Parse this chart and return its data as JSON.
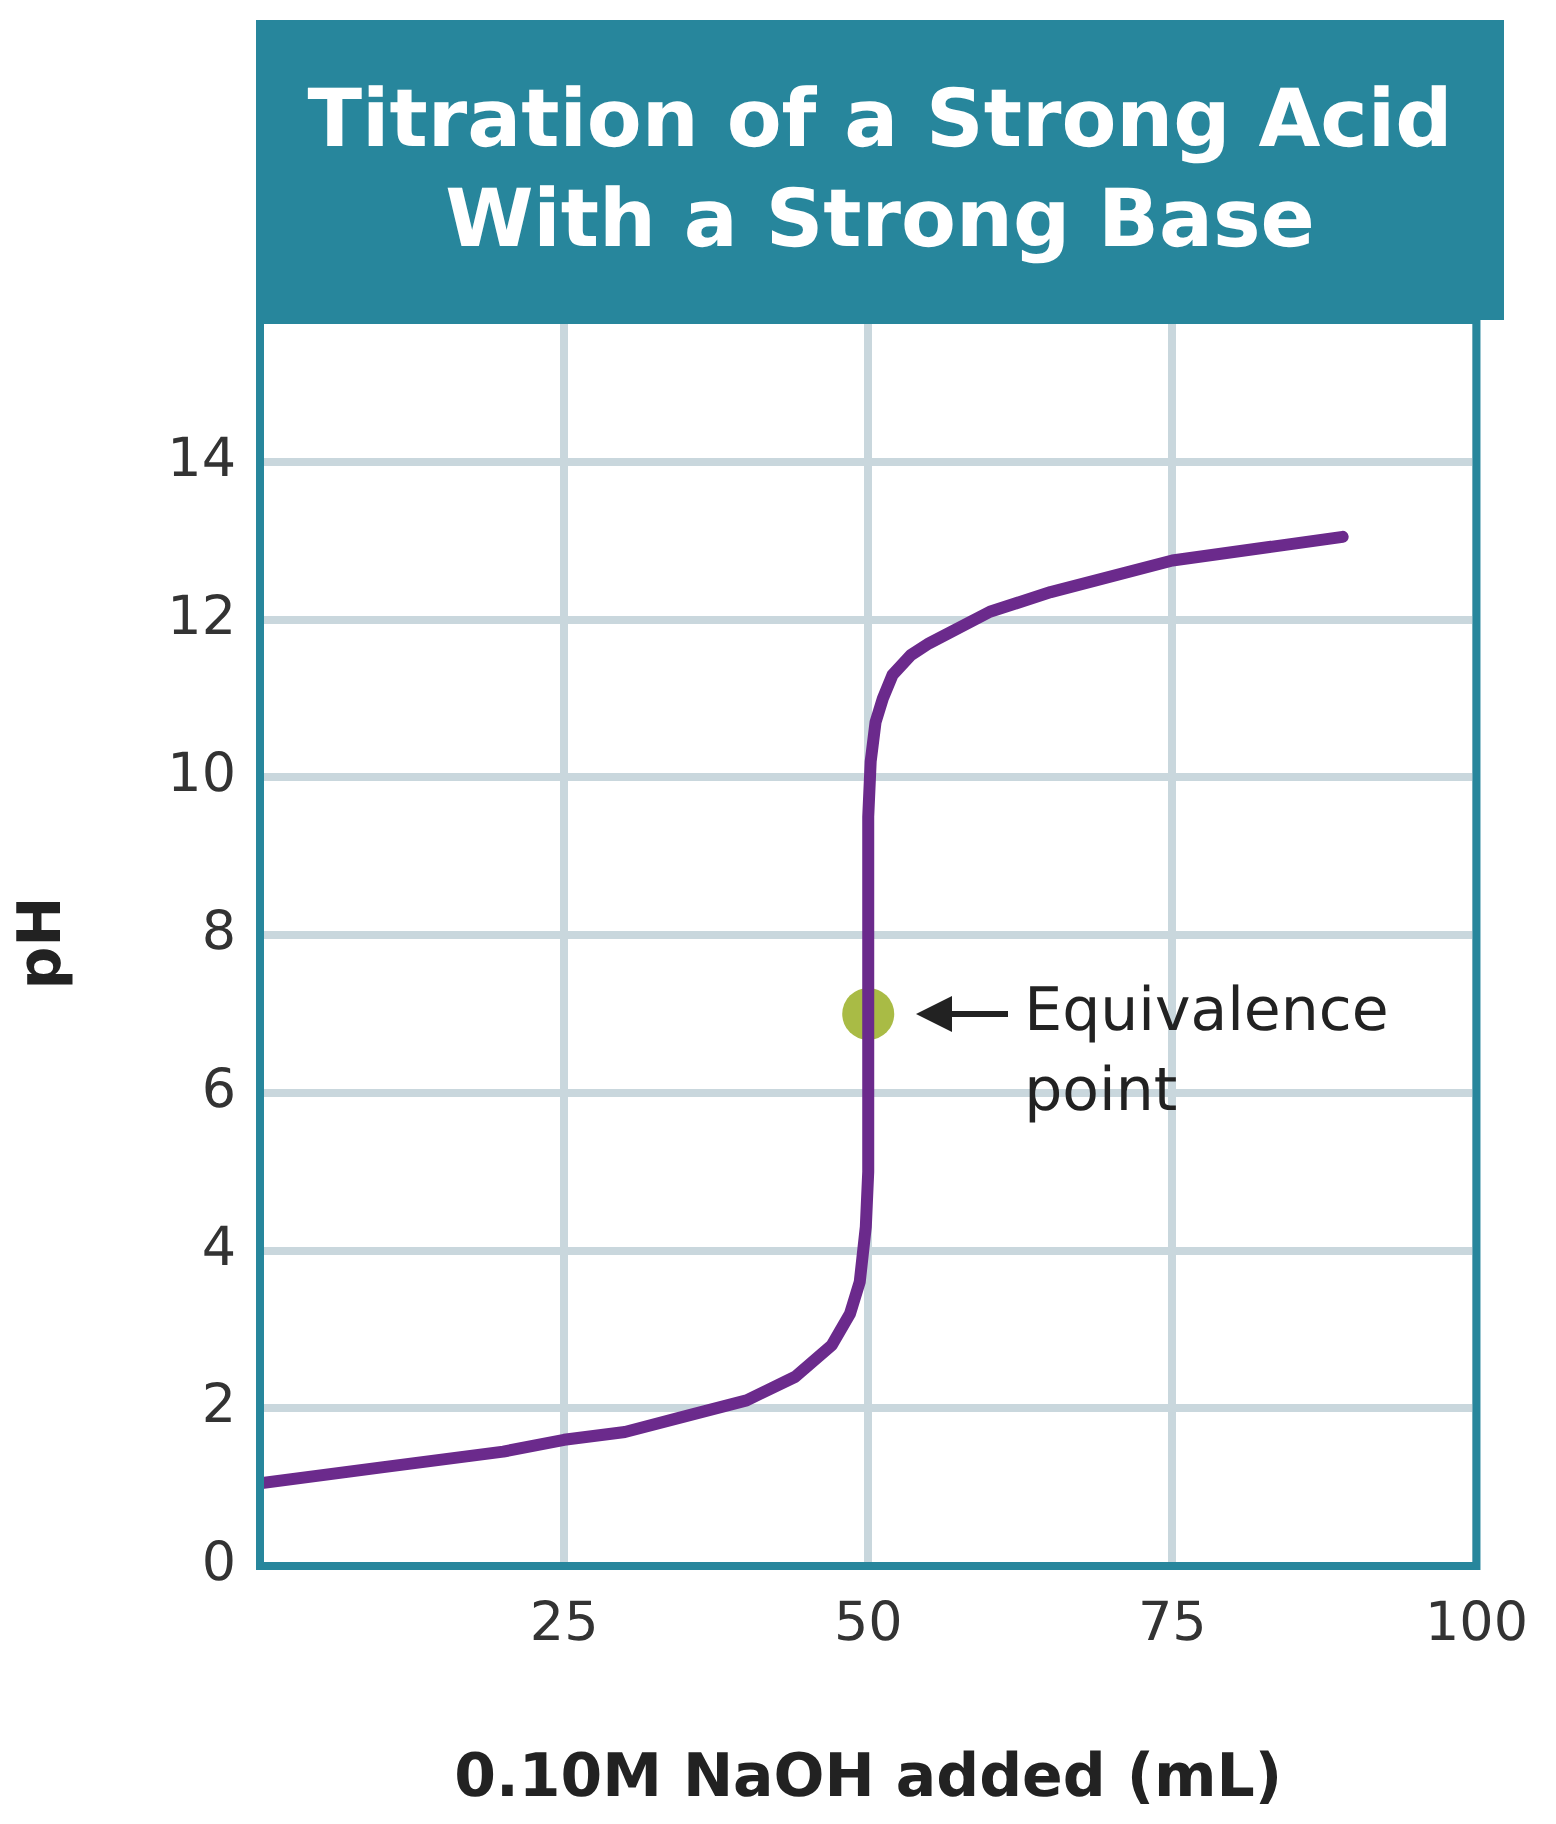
{
  "chart_data": {
    "type": "line",
    "title": "Titration of a Strong Acid With a Strong Base",
    "xlabel": "0.10M NaOH added (mL)",
    "ylabel": "pH",
    "xlim": [
      0,
      100
    ],
    "xticks": [
      25,
      50,
      75,
      100
    ],
    "ylim": [
      0,
      15.8
    ],
    "yticks": [
      0,
      2,
      4,
      6,
      8,
      10,
      12,
      14
    ],
    "grid": true,
    "legend": false,
    "series": [
      {
        "type": "line",
        "color": "#6b2a8c",
        "marker": "none",
        "x": [
          0,
          10,
          20,
          25,
          30,
          35,
          40,
          44,
          47,
          48.5,
          49.3,
          49.8,
          50,
          50,
          50.2,
          50.6,
          51.2,
          52,
          53.5,
          55,
          60,
          65,
          75,
          89
        ],
        "values": [
          1.05,
          1.25,
          1.45,
          1.6,
          1.7,
          1.9,
          2.1,
          2.4,
          2.8,
          3.2,
          3.6,
          4.3,
          5,
          9.5,
          10.2,
          10.7,
          11,
          11.3,
          11.55,
          11.7,
          12.1,
          12.35,
          12.75,
          13.05
        ]
      },
      {
        "type": "scatter",
        "color": "#a9bb45",
        "marker": "circle",
        "x": [
          50
        ],
        "values": [
          7
        ]
      }
    ],
    "annotations": [
      {
        "text": "Equivalence point",
        "x": 50,
        "y": 7
      }
    ]
  }
}
